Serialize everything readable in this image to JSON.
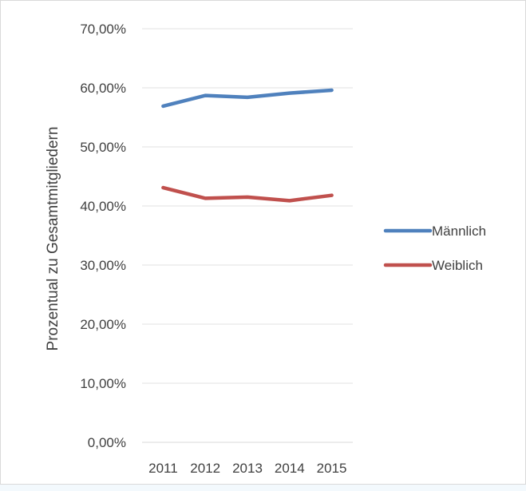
{
  "chart_data": {
    "type": "line",
    "title": "",
    "xlabel": "",
    "ylabel": "Prozentual zu Gesamtmitgliedern",
    "categories": [
      "2011",
      "2012",
      "2013",
      "2014",
      "2015"
    ],
    "ylim": [
      0,
      70
    ],
    "y_ticks": [
      0,
      10,
      20,
      30,
      40,
      50,
      60,
      70
    ],
    "y_tick_labels": [
      "0,00%",
      "10,00%",
      "20,00%",
      "30,00%",
      "40,00%",
      "50,00%",
      "60,00%",
      "70,00%"
    ],
    "grid": true,
    "legend_position": "right",
    "series": [
      {
        "name": "Männlich",
        "color": "#4f81bd",
        "values": [
          56.9,
          58.7,
          58.4,
          59.1,
          59.6
        ]
      },
      {
        "name": "Weiblich",
        "color": "#c0504d",
        "values": [
          43.1,
          41.3,
          41.5,
          40.9,
          41.8
        ]
      }
    ]
  }
}
